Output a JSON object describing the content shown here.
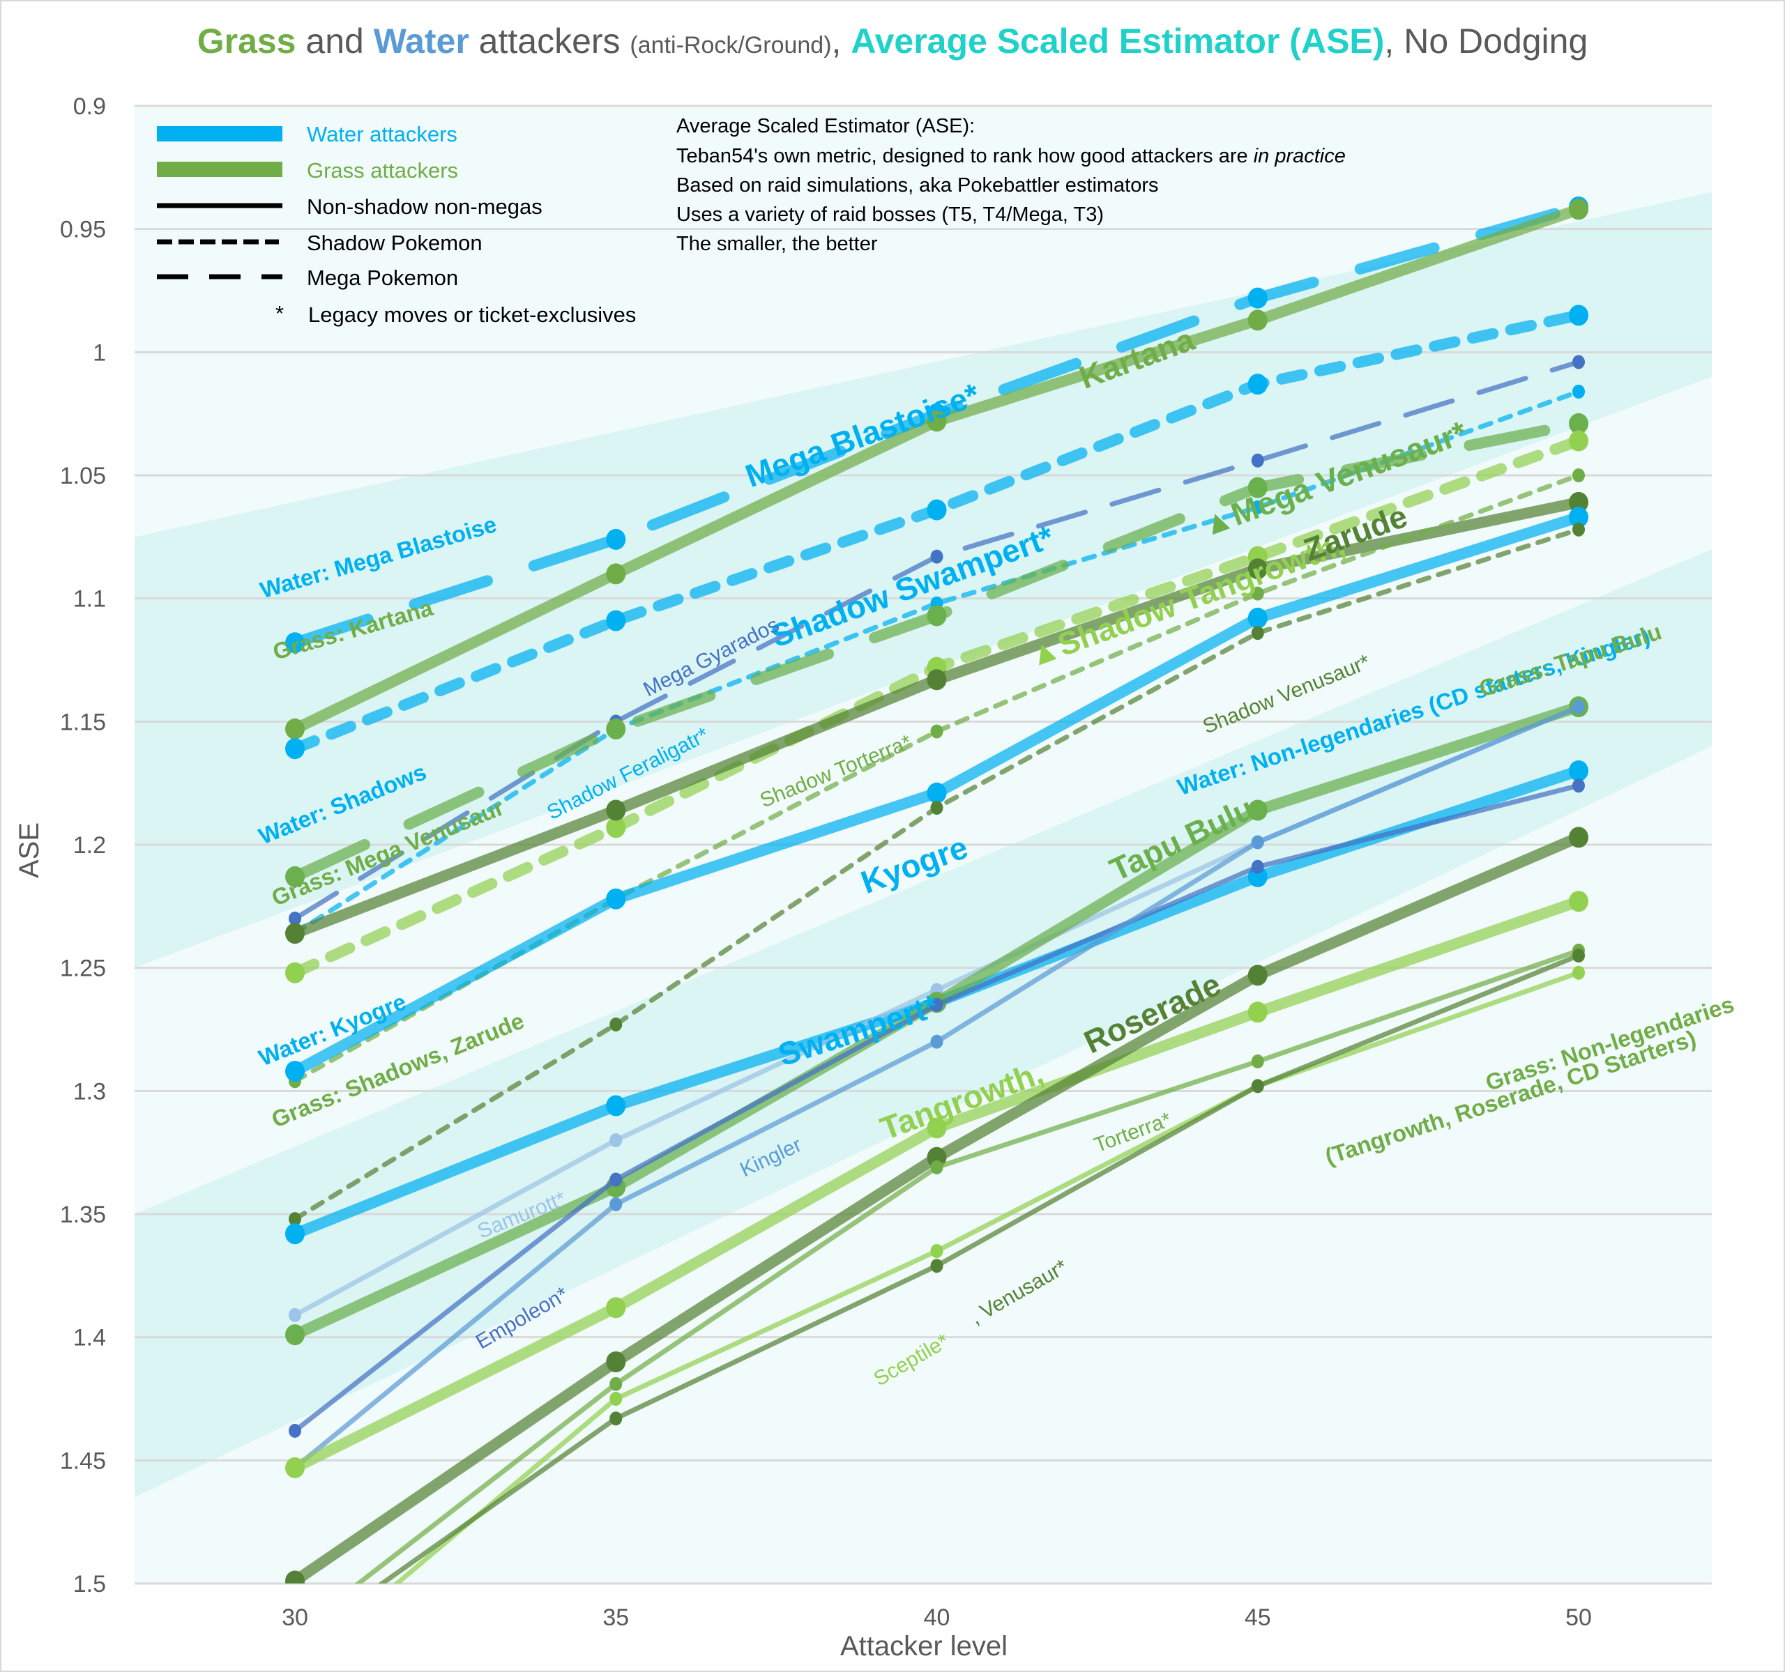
{
  "title": {
    "grass": "Grass",
    "and": " and ",
    "water": "Water",
    "attackers": " attackers ",
    "scope": "(anti-Rock/Ground)",
    "comma1": ", ",
    "ase": "Average Scaled Estimator (ASE)",
    "comma2": ", ",
    "dodge": "No Dodging"
  },
  "colors": {
    "water": "#00b0f0",
    "grass": "#70ad47",
    "band": "#c9f0f0",
    "bg": "#f2fbfb"
  },
  "legend": {
    "items": [
      {
        "label": "Water attackers",
        "style": "water-thick"
      },
      {
        "label": "Grass attackers",
        "style": "grass-thick"
      },
      {
        "label": "Non-shadow non-megas",
        "style": "solid"
      },
      {
        "label": "Shadow Pokemon",
        "style": "short-dash"
      },
      {
        "label": "Mega Pokemon",
        "style": "long-dash"
      },
      {
        "label": "Legacy moves or ticket-exclusives",
        "style": "asterisk",
        "marker": "*"
      }
    ]
  },
  "notes": [
    "Average Scaled Estimator (ASE):",
    "Teban54's own metric, designed to rank how good attackers are ",
    "Based on raid simulations, aka Pokebattler estimators",
    "Uses a variety of raid bosses (T5, T4/Mega, T3)",
    "The smaller, the better"
  ],
  "notes_italic": "in practice",
  "chart_data": {
    "type": "line",
    "title": "Grass and Water attackers (anti-Rock/Ground), Average Scaled Estimator (ASE), No Dodging",
    "xlabel": "Attacker level",
    "ylabel": "ASE",
    "x": [
      30,
      35,
      40,
      45,
      50
    ],
    "xticks": [
      "30",
      "35",
      "40",
      "45",
      "50"
    ],
    "yticks": [
      "0.9",
      "0.95",
      "1",
      "1.05",
      "1.1",
      "1.15",
      "1.2",
      "1.25",
      "1.3",
      "1.35",
      "1.4",
      "1.45",
      "1.5"
    ],
    "ylim": [
      0.9,
      1.5
    ],
    "y_inverted": true,
    "grid": true,
    "legend_position": "top-left",
    "series": [
      {
        "name": "Mega Blastoise*",
        "type": "water",
        "style": "mega",
        "weight": "thick",
        "color": "#00b0f0",
        "values": [
          1.118,
          1.076,
          1.025,
          0.978,
          0.941
        ]
      },
      {
        "name": "Kartana",
        "type": "grass",
        "style": "solid",
        "weight": "thick",
        "color": "#70ad47",
        "values": [
          1.153,
          1.09,
          1.028,
          0.987,
          0.942
        ]
      },
      {
        "name": "Shadow Swampert*",
        "type": "water",
        "style": "shadow",
        "weight": "thick",
        "color": "#00b0f0",
        "values": [
          1.161,
          1.109,
          1.064,
          1.013,
          0.985
        ]
      },
      {
        "name": "Mega Gyarados",
        "type": "water",
        "style": "mega",
        "weight": "thin",
        "color": "#4472c4",
        "values": [
          1.23,
          1.15,
          1.083,
          1.044,
          1.004
        ]
      },
      {
        "name": "Shadow Feraligatr*",
        "type": "water",
        "style": "shadow",
        "weight": "thin",
        "color": "#00b0f0",
        "values": [
          1.236,
          1.153,
          1.102,
          1.063,
          1.016
        ]
      },
      {
        "name": "Mega Venusaur*",
        "type": "grass",
        "style": "mega",
        "weight": "thick",
        "color": "#6ab04c",
        "values": [
          1.213,
          1.153,
          1.107,
          1.055,
          1.029
        ]
      },
      {
        "name": "Shadow Tangrowth",
        "type": "grass",
        "style": "shadow",
        "weight": "thick",
        "color": "#92d050",
        "values": [
          1.252,
          1.193,
          1.128,
          1.083,
          1.036
        ]
      },
      {
        "name": "Zarude",
        "type": "grass",
        "style": "solid",
        "weight": "thick",
        "color": "#548235",
        "values": [
          1.236,
          1.186,
          1.133,
          1.088,
          1.061
        ]
      },
      {
        "name": "Shadow Torterra*",
        "type": "grass",
        "style": "shadow",
        "weight": "thin",
        "color": "#70ad47",
        "values": [
          1.296,
          1.222,
          1.154,
          1.098,
          1.05
        ]
      },
      {
        "name": "Kyogre",
        "type": "water",
        "style": "solid",
        "weight": "thick",
        "color": "#00b0f0",
        "values": [
          1.292,
          1.222,
          1.179,
          1.108,
          1.067
        ]
      },
      {
        "name": "Shadow Venusaur*",
        "type": "grass",
        "style": "shadow",
        "weight": "thin",
        "color": "#548235",
        "values": [
          1.352,
          1.273,
          1.185,
          1.114,
          1.072
        ]
      },
      {
        "name": "Swampert*",
        "type": "water",
        "style": "solid",
        "weight": "thick",
        "color": "#00b0f0",
        "values": [
          1.358,
          1.306,
          1.264,
          1.213,
          1.17
        ]
      },
      {
        "name": "Samurott*",
        "type": "water",
        "style": "solid",
        "weight": "thin",
        "color": "#9dc3e6",
        "values": [
          1.391,
          1.32,
          1.259,
          1.199,
          1.144
        ]
      },
      {
        "name": "Tapu Bulu",
        "type": "grass",
        "style": "solid",
        "weight": "thick",
        "color": "#6ab04c",
        "values": [
          1.399,
          1.339,
          1.264,
          1.186,
          1.144
        ]
      },
      {
        "name": "Empoleon*",
        "type": "water",
        "style": "solid",
        "weight": "thin",
        "color": "#4472c4",
        "values": [
          1.438,
          1.336,
          1.265,
          1.209,
          1.176
        ]
      },
      {
        "name": "Kingler",
        "type": "water",
        "style": "solid",
        "weight": "thin",
        "color": "#5b9bd5",
        "values": [
          1.453,
          1.346,
          1.28,
          1.199,
          1.144
        ]
      },
      {
        "name": "Tangrowth",
        "type": "grass",
        "style": "solid",
        "weight": "thick",
        "color": "#92d050",
        "values": [
          1.453,
          1.388,
          1.315,
          1.268,
          1.223
        ]
      },
      {
        "name": "Roserade",
        "type": "grass",
        "style": "solid",
        "weight": "thick",
        "color": "#548235",
        "values": [
          1.499,
          1.41,
          1.327,
          1.253,
          1.197
        ]
      },
      {
        "name": "Torterra*",
        "type": "grass",
        "style": "solid",
        "weight": "thin",
        "color": "#70ad47",
        "values": [
          1.52,
          1.419,
          1.331,
          1.288,
          1.243
        ]
      },
      {
        "name": "Sceptile*",
        "type": "grass",
        "style": "solid",
        "weight": "thin",
        "color": "#92d050",
        "values": [
          1.535,
          1.425,
          1.365,
          1.298,
          1.252
        ]
      },
      {
        "name": "Venusaur*",
        "type": "grass",
        "style": "solid",
        "weight": "thin",
        "color": "#548235",
        "values": [
          1.525,
          1.433,
          1.371,
          1.298,
          1.245
        ]
      }
    ],
    "annotations": [
      {
        "text": "Mega Blastoise*",
        "color": "#00b0f0",
        "bold": true,
        "size": "large",
        "x": 37.1,
        "y": 1.055,
        "angle": -20
      },
      {
        "text": "Kartana",
        "color": "#70ad47",
        "bold": true,
        "size": "large",
        "x": 42.3,
        "y": 1.015,
        "angle": -20
      },
      {
        "text": "Shadow Swampert*",
        "color": "#00b0f0",
        "bold": true,
        "size": "large",
        "x": 37.5,
        "y": 1.12,
        "angle": -20
      },
      {
        "text": "Mega Gyarados",
        "color": "#4472c4",
        "bold": false,
        "size": "small",
        "x": 35.5,
        "y": 1.14,
        "angle": -27
      },
      {
        "text": "Shadow Feraligatr*",
        "color": "#00b0f0",
        "bold": false,
        "size": "small",
        "x": 34.0,
        "y": 1.19,
        "angle": -27
      },
      {
        "text": "▲Mega Venusaur*",
        "color": "#6ab04c",
        "bold": true,
        "size": "large",
        "x": 44.2,
        "y": 1.075,
        "angle": -20
      },
      {
        "text": "▲Shadow Tangrowth,",
        "color": "#92d050",
        "bold": true,
        "size": "large",
        "x": 41.5,
        "y": 1.128,
        "angle": -20
      },
      {
        "text": "Zarude",
        "color": "#548235",
        "bold": true,
        "size": "large",
        "x": 45.8,
        "y": 1.085,
        "angle": -20
      },
      {
        "text": "Shadow Torterra*",
        "color": "#70ad47",
        "bold": false,
        "size": "small",
        "x": 37.3,
        "y": 1.185,
        "angle": -22
      },
      {
        "text": "Shadow Venusaur*",
        "color": "#548235",
        "bold": false,
        "size": "small",
        "x": 44.2,
        "y": 1.155,
        "angle": -22
      },
      {
        "text": "Kyogre",
        "color": "#00b0f0",
        "bold": true,
        "size": "large",
        "x": 38.9,
        "y": 1.22,
        "angle": -20
      },
      {
        "text": "Tapu Bulu",
        "color": "#6ab04c",
        "bold": true,
        "size": "large",
        "x": 42.8,
        "y": 1.215,
        "angle": -25
      },
      {
        "text": "Swampert*",
        "color": "#00b0f0",
        "bold": true,
        "size": "large",
        "x": 37.6,
        "y": 1.29,
        "angle": -18
      },
      {
        "text": "Samurott*",
        "color": "#9dc3e6",
        "bold": false,
        "size": "small",
        "x": 32.9,
        "y": 1.36,
        "angle": -22
      },
      {
        "text": "Empoleon*",
        "color": "#4472c4",
        "bold": false,
        "size": "small",
        "x": 32.9,
        "y": 1.405,
        "angle": -30
      },
      {
        "text": "Kingler",
        "color": "#5b9bd5",
        "bold": false,
        "size": "small",
        "x": 37.0,
        "y": 1.335,
        "angle": -25
      },
      {
        "text": "Tangrowth,",
        "color": "#92d050",
        "bold": true,
        "size": "large",
        "x": 39.2,
        "y": 1.32,
        "angle": -20
      },
      {
        "text": "Roserade",
        "color": "#548235",
        "bold": true,
        "size": "large",
        "x": 42.4,
        "y": 1.285,
        "angle": -25
      },
      {
        "text": "Torterra*",
        "color": "#70ad47",
        "bold": false,
        "size": "small",
        "x": 42.5,
        "y": 1.325,
        "angle": -20
      },
      {
        "text": "Sceptile*",
        "color": "#92d050",
        "bold": false,
        "size": "small",
        "x": 39.1,
        "y": 1.42,
        "angle": -30
      },
      {
        "text": ", Venusaur*",
        "color": "#548235",
        "bold": false,
        "size": "small",
        "x": 40.6,
        "y": 1.395,
        "angle": -30
      },
      {
        "text": "Water: Mega Blastoise",
        "color": "#00b0f0",
        "bold": true,
        "size": "medium",
        "x": 29.5,
        "y": 1.1,
        "angle": -16
      },
      {
        "text": "Grass: Kartana",
        "color": "#70ad47",
        "bold": true,
        "size": "medium",
        "x": 29.7,
        "y": 1.125,
        "angle": -16
      },
      {
        "text": "Water: Shadows",
        "color": "#00b0f0",
        "bold": true,
        "size": "medium",
        "x": 29.5,
        "y": 1.2,
        "angle": -22
      },
      {
        "text": "Grass: Mega Venusaur",
        "color": "#70ad47",
        "bold": true,
        "size": "medium",
        "x": 29.7,
        "y": 1.225,
        "angle": -22
      },
      {
        "text": "Water: Kyogre",
        "color": "#00b0f0",
        "bold": true,
        "size": "medium",
        "x": 29.5,
        "y": 1.29,
        "angle": -22
      },
      {
        "text": "Grass: Shadows, Zarude",
        "color": "#70ad47",
        "bold": true,
        "size": "medium",
        "x": 29.7,
        "y": 1.315,
        "angle": -22
      },
      {
        "text": "Water: Non-legendaries (CD starters, Kingler)",
        "color": "#00b0f0",
        "bold": true,
        "size": "medium",
        "x": 43.8,
        "y": 1.18,
        "angle": -18
      },
      {
        "text": "Grass: Tapu Bulu",
        "color": "#70ad47",
        "bold": true,
        "size": "medium",
        "x": 48.5,
        "y": 1.14,
        "angle": -18
      },
      {
        "text": "Grass: Non-legendaries",
        "color": "#70ad47",
        "bold": true,
        "size": "medium",
        "x": 48.6,
        "y": 1.3,
        "angle": -18
      },
      {
        "text": "(Tangrowth, Roserade, CD Starters)",
        "color": "#70ad47",
        "bold": true,
        "size": "medium",
        "x": 46.1,
        "y": 1.33,
        "angle": -18
      }
    ],
    "bands": [
      {
        "y_at_left": [
          1.075,
          1.25
        ],
        "y_at_right": [
          0.935,
          1.01
        ]
      },
      {
        "y_at_left": [
          1.35,
          1.465
        ],
        "y_at_right": [
          1.08,
          1.16
        ]
      }
    ]
  }
}
